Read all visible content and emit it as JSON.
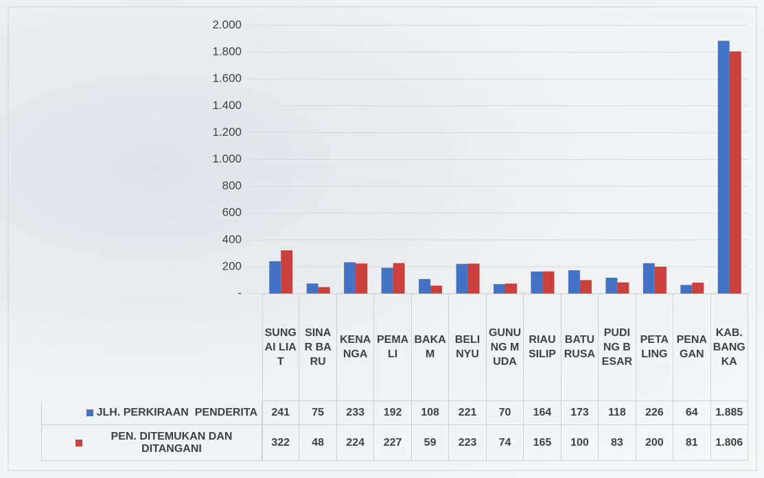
{
  "chart_data": {
    "type": "bar",
    "categories": [
      "SUNGAI LIAT",
      "SINAR BARU",
      "KENANGA",
      "PEMALI",
      "BAKAM",
      "BELINYU",
      "GUNUNG MUDA",
      "RIAU SILIP",
      "BATURUSA",
      "PUDING BESAR",
      "PETALING",
      "PENAGAN",
      "KAB. BANGKA"
    ],
    "series": [
      {
        "name": "JLH. PERKIRAAN  PENDERITA",
        "color": "#4472c4",
        "values": [
          241,
          75,
          233,
          192,
          108,
          221,
          70,
          164,
          173,
          118,
          226,
          64,
          1885
        ],
        "value_labels": [
          "241",
          "75",
          "233",
          "192",
          "108",
          "221",
          "70",
          "164",
          "173",
          "118",
          "226",
          "64",
          "1.885"
        ]
      },
      {
        "name": "PEN. DITEMUKAN DAN DITANGANI",
        "color": "#c9403c",
        "values": [
          322,
          48,
          224,
          227,
          59,
          223,
          74,
          165,
          100,
          83,
          200,
          81,
          1806
        ],
        "value_labels": [
          "322",
          "48",
          "224",
          "227",
          "59",
          "223",
          "74",
          "165",
          "100",
          "83",
          "200",
          "81",
          "1.806"
        ]
      }
    ],
    "ylim": [
      0,
      2000
    ],
    "yticks": [
      {
        "value": 0,
        "label": "-"
      },
      200,
      400,
      600,
      800,
      {
        "value": 1000,
        "label": "1.000"
      },
      {
        "value": 1200,
        "label": "1.200"
      },
      {
        "value": 1400,
        "label": "1.400"
      },
      {
        "value": 1600,
        "label": "1.600"
      },
      {
        "value": 1800,
        "label": "1.800"
      },
      {
        "value": 2000,
        "label": "2.000"
      }
    ],
    "grid": true
  }
}
